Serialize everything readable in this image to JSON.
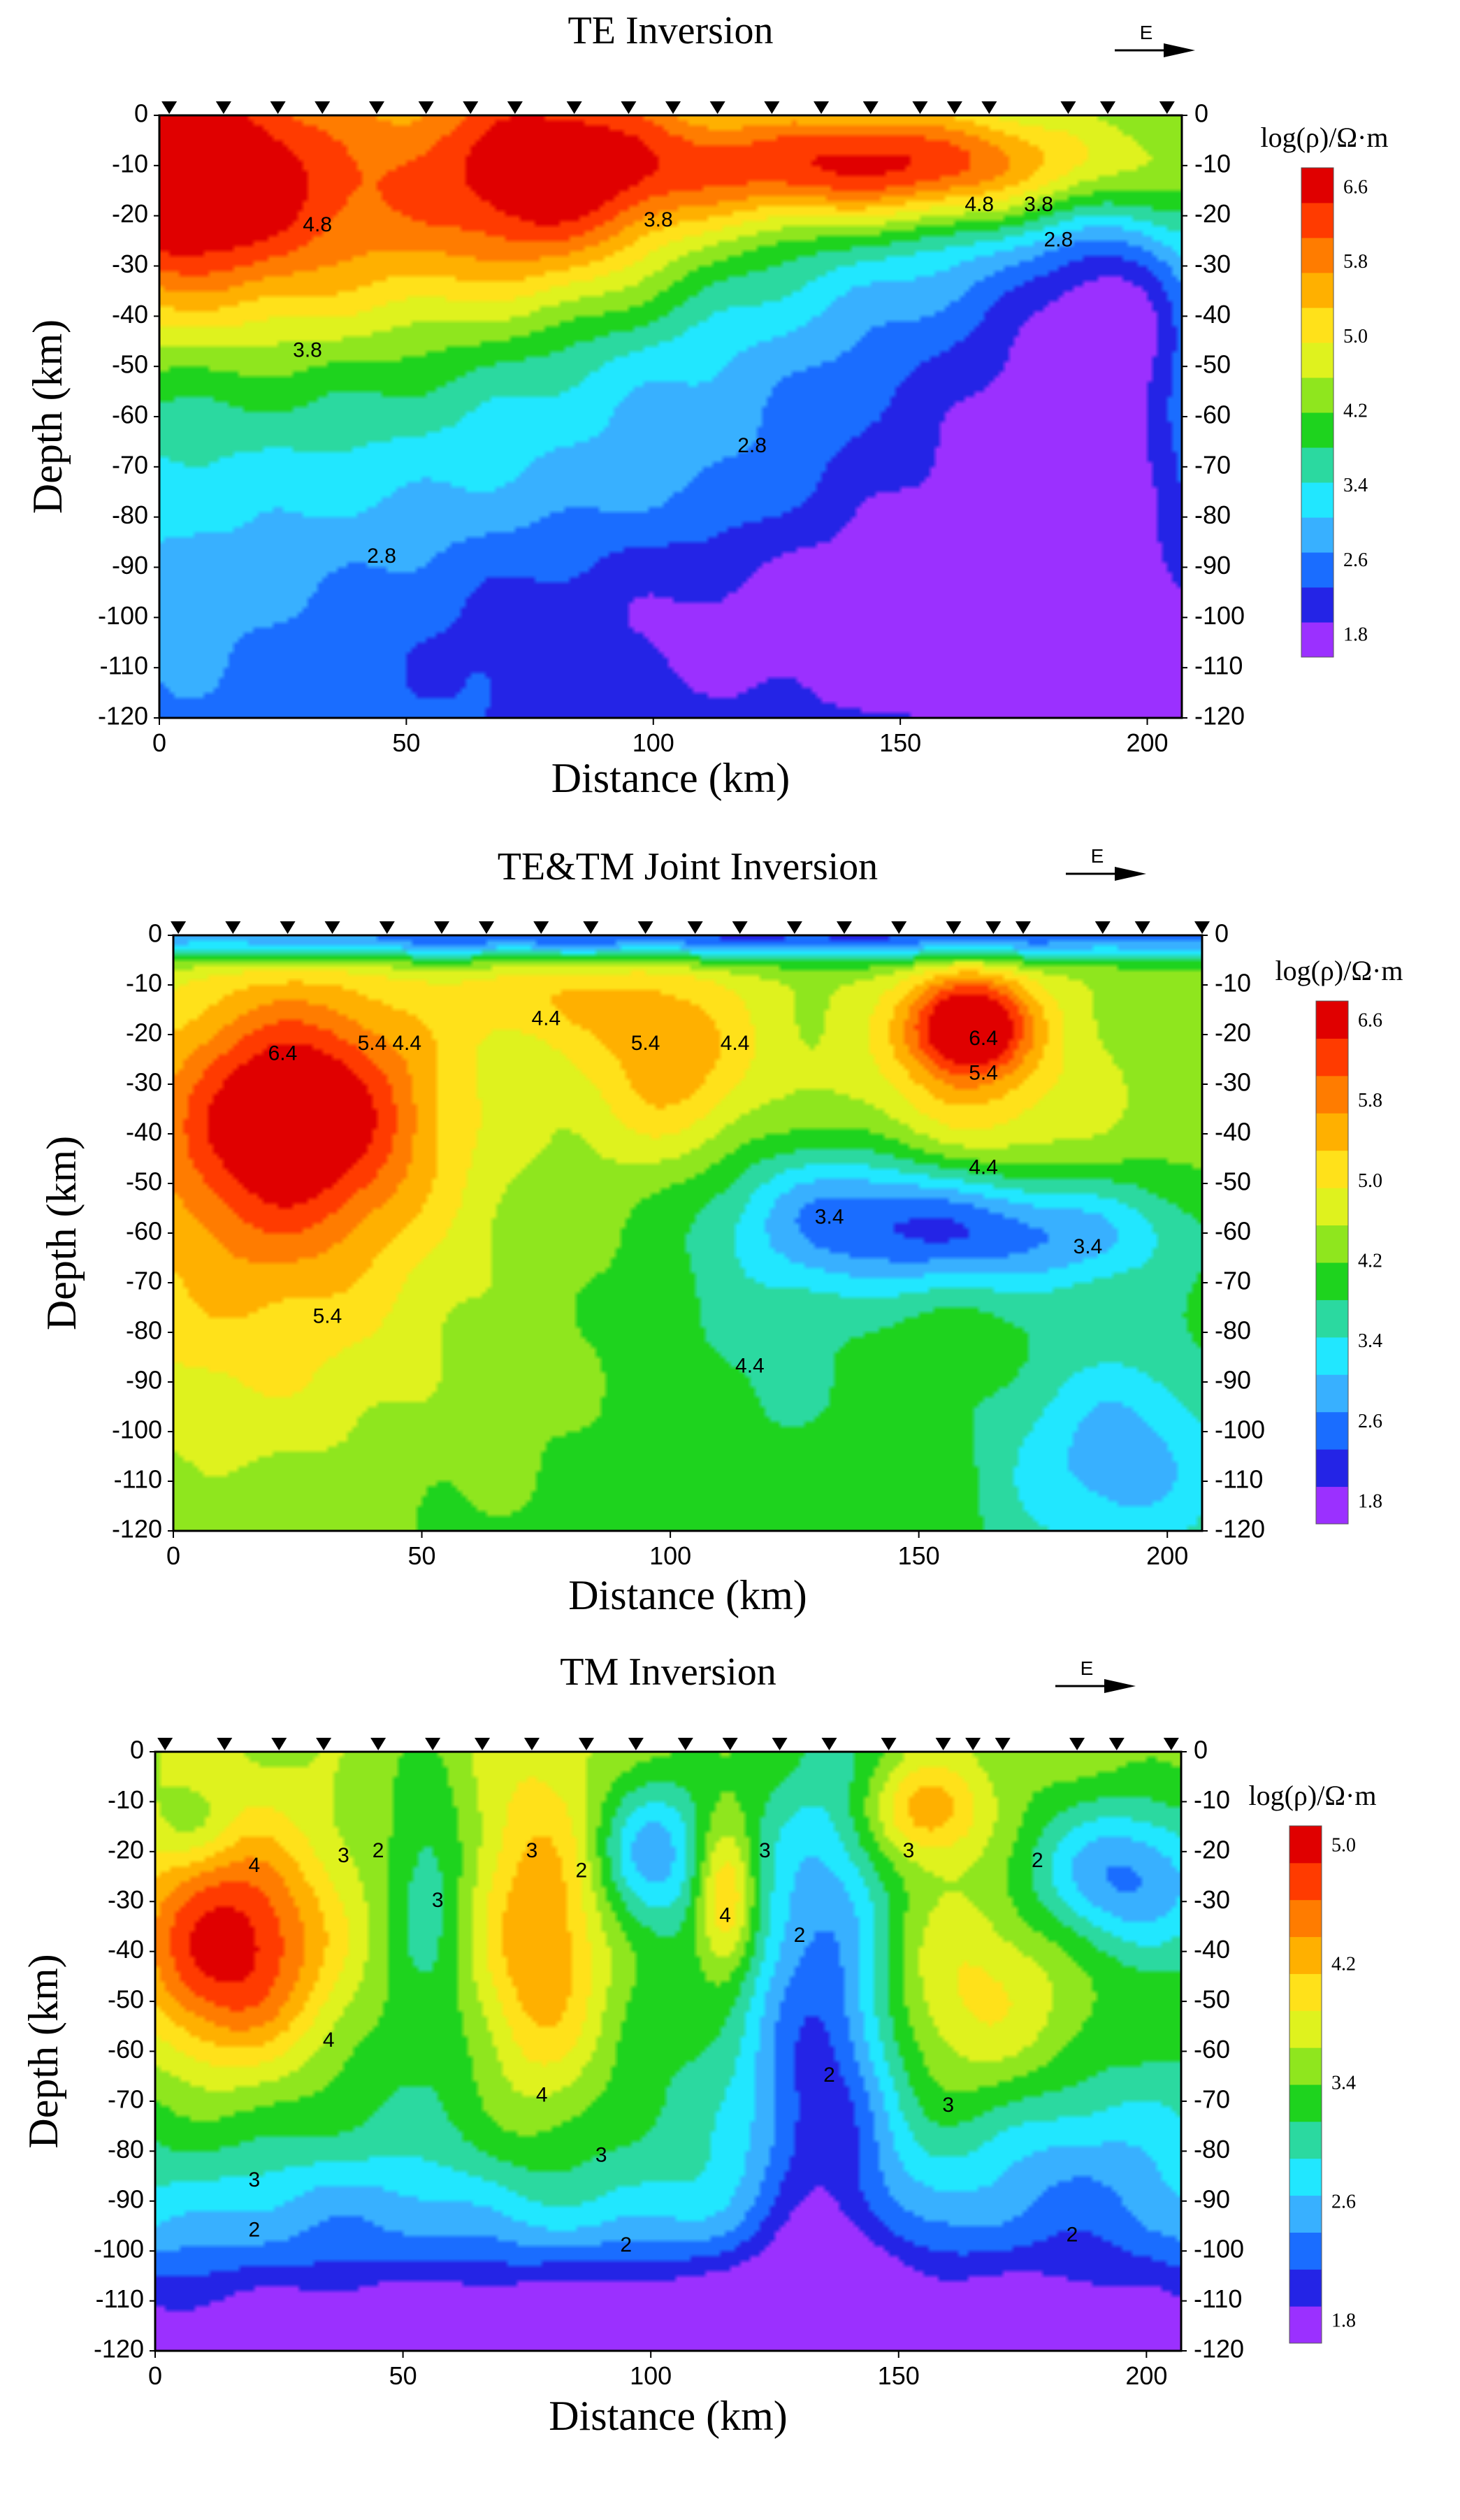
{
  "colors": {
    "scale": [
      "#9b30ff",
      "#2424e6",
      "#1a6dff",
      "#38b0ff",
      "#21e7ff",
      "#2bd9a0",
      "#1ed31e",
      "#8fe61e",
      "#dff21e",
      "#ffe11a",
      "#ffb000",
      "#ff7c00",
      "#ff3b00",
      "#e00000"
    ],
    "station": "#000000"
  },
  "chart_data": [
    {
      "type": "heatmap",
      "title": "TE Inversion",
      "direction_label": "E",
      "xlabel": "Distance (km)",
      "ylabel": "Depth (km)",
      "xlim": [
        0,
        207
      ],
      "ylim": [
        -120,
        0
      ],
      "x_ticks": [
        "0",
        "50",
        "100",
        "150",
        "200"
      ],
      "y_ticks": [
        "0",
        "-10",
        "-20",
        "-30",
        "-40",
        "-50",
        "-60",
        "-70",
        "-80",
        "-90",
        "-100",
        "-110",
        "-120"
      ],
      "colorbar": {
        "label": "log(ρ)/Ω·m",
        "ticks": [
          "6.6",
          "5.8",
          "5.0",
          "4.2",
          "3.4",
          "2.6",
          "1.8"
        ],
        "min": 1.8,
        "max": 6.6
      },
      "stations_km": [
        2,
        13,
        24,
        33,
        44,
        54,
        63,
        72,
        84,
        95,
        104,
        113,
        124,
        134,
        144,
        154,
        161,
        168,
        184,
        192,
        204
      ],
      "contour_labels": [
        {
          "text": "4.8",
          "x": 32,
          "y": -22
        },
        {
          "text": "3.8",
          "x": 101,
          "y": -21
        },
        {
          "text": "4.8",
          "x": 166,
          "y": -18
        },
        {
          "text": "3.8",
          "x": 178,
          "y": -18
        },
        {
          "text": "2.8",
          "x": 182,
          "y": -25
        },
        {
          "text": "3.8",
          "x": 30,
          "y": -47
        },
        {
          "text": "2.8",
          "x": 120,
          "y": -66
        },
        {
          "text": "2.8",
          "x": 45,
          "y": -88
        }
      ],
      "anomalies": [
        {
          "x": 0,
          "y": -10,
          "r": [
            30,
            25
          ],
          "v": 1.8
        },
        {
          "x": 30,
          "y": -20,
          "r": [
            70,
            30
          ],
          "v": 1.6
        },
        {
          "x": 80,
          "y": -10,
          "r": [
            25,
            25
          ],
          "v": 1.5
        },
        {
          "x": 150,
          "y": -10,
          "r": [
            50,
            12
          ],
          "v": 2.5
        },
        {
          "x": 110,
          "y": -100,
          "r": [
            70,
            25
          ],
          "v": -0.9
        },
        {
          "x": 150,
          "y": -60,
          "r": [
            30,
            50
          ],
          "v": -0.8
        },
        {
          "x": 185,
          "y": -70,
          "r": [
            25,
            60
          ],
          "v": -1.5
        },
        {
          "x": 195,
          "y": -40,
          "r": [
            15,
            20
          ],
          "v": -0.9
        },
        {
          "x": 205,
          "y": -115,
          "r": [
            20,
            20
          ],
          "v": -0.8
        },
        {
          "x": 100,
          "y": -50,
          "r": [
            40,
            20
          ],
          "v": -0.5
        }
      ],
      "base": {
        "top": 4.2,
        "bottom": 2.8
      }
    },
    {
      "type": "heatmap",
      "title": "TE&TM Joint Inversion",
      "direction_label": "E",
      "xlabel": "Distance (km)",
      "ylabel": "Depth (km)",
      "xlim": [
        0,
        207
      ],
      "ylim": [
        -120,
        0
      ],
      "x_ticks": [
        "0",
        "50",
        "100",
        "150",
        "200"
      ],
      "y_ticks": [
        "0",
        "-10",
        "-20",
        "-30",
        "-40",
        "-50",
        "-60",
        "-70",
        "-80",
        "-90",
        "-100",
        "-110",
        "-120"
      ],
      "colorbar": {
        "label": "log(ρ)/Ω·m",
        "ticks": [
          "6.6",
          "5.8",
          "5.0",
          "4.2",
          "3.4",
          "2.6",
          "1.8"
        ],
        "min": 1.8,
        "max": 7.2
      },
      "stations_km": [
        1,
        12,
        23,
        32,
        43,
        54,
        63,
        74,
        84,
        95,
        105,
        114,
        125,
        135,
        146,
        157,
        165,
        171,
        187,
        195,
        207
      ],
      "contour_labels": [
        {
          "text": "6.4",
          "x": 22,
          "y": -24
        },
        {
          "text": "5.4",
          "x": 40,
          "y": -22
        },
        {
          "text": "4.4",
          "x": 47,
          "y": -22
        },
        {
          "text": "4.4",
          "x": 75,
          "y": -17
        },
        {
          "text": "5.4",
          "x": 95,
          "y": -22
        },
        {
          "text": "4.4",
          "x": 113,
          "y": -22
        },
        {
          "text": "6.4",
          "x": 163,
          "y": -21
        },
        {
          "text": "5.4",
          "x": 163,
          "y": -28
        },
        {
          "text": "4.4",
          "x": 163,
          "y": -47
        },
        {
          "text": "3.4",
          "x": 132,
          "y": -57
        },
        {
          "text": "3.4",
          "x": 184,
          "y": -63
        },
        {
          "text": "5.4",
          "x": 31,
          "y": -77
        },
        {
          "text": "4.4",
          "x": 116,
          "y": -87
        }
      ],
      "anomalies": [
        {
          "x": 25,
          "y": -35,
          "r": [
            28,
            25
          ],
          "v": 2.4
        },
        {
          "x": 15,
          "y": -70,
          "r": [
            40,
            40
          ],
          "v": 1.0
        },
        {
          "x": 100,
          "y": -25,
          "r": [
            18,
            20
          ],
          "v": 1.2
        },
        {
          "x": 160,
          "y": -18,
          "r": [
            12,
            10
          ],
          "v": 2.6
        },
        {
          "x": 160,
          "y": -35,
          "r": [
            25,
            25
          ],
          "v": 0.9
        },
        {
          "x": 170,
          "y": -60,
          "r": [
            35,
            12
          ],
          "v": -1.6
        },
        {
          "x": 140,
          "y": -55,
          "r": [
            30,
            15
          ],
          "v": -1.4
        },
        {
          "x": 190,
          "y": -105,
          "r": [
            25,
            25
          ],
          "v": -1.3
        },
        {
          "x": 120,
          "y": -80,
          "r": [
            25,
            30
          ],
          "v": -0.5
        },
        {
          "x": 75,
          "y": -12,
          "r": [
            20,
            10
          ],
          "v": 0.7
        },
        {
          "x": 100,
          "y": 0,
          "r": [
            207,
            5
          ],
          "v": -2.4
        }
      ],
      "base": {
        "top": 4.8,
        "bottom": 4.4
      }
    },
    {
      "type": "heatmap",
      "title": "TM Inversion",
      "direction_label": "E",
      "xlabel": "Distance (km)",
      "ylabel": "Depth (km)",
      "xlim": [
        0,
        207
      ],
      "ylim": [
        -120,
        0
      ],
      "x_ticks": [
        "0",
        "50",
        "100",
        "150",
        "200"
      ],
      "y_ticks": [
        "0",
        "-10",
        "-20",
        "-30",
        "-40",
        "-50",
        "-60",
        "-70",
        "-80",
        "-90",
        "-100",
        "-110",
        "-120"
      ],
      "colorbar": {
        "label": "log(ρ)/Ω·m",
        "ticks": [
          "5.0",
          "4.2",
          "3.4",
          "2.6",
          "1.8"
        ],
        "min": 0.6,
        "max": 5.4
      },
      "stations_km": [
        2,
        14,
        25,
        34,
        45,
        56,
        66,
        76,
        87,
        97,
        107,
        116,
        126,
        136,
        148,
        159,
        165,
        171,
        186,
        194,
        205
      ],
      "contour_labels": [
        {
          "text": "4",
          "x": 20,
          "y": -23
        },
        {
          "text": "3",
          "x": 38,
          "y": -21
        },
        {
          "text": "2",
          "x": 45,
          "y": -20
        },
        {
          "text": "3",
          "x": 57,
          "y": -30
        },
        {
          "text": "3",
          "x": 76,
          "y": -20
        },
        {
          "text": "2",
          "x": 86,
          "y": -24
        },
        {
          "text": "3",
          "x": 123,
          "y": -20
        },
        {
          "text": "4",
          "x": 115,
          "y": -33
        },
        {
          "text": "2",
          "x": 130,
          "y": -37
        },
        {
          "text": "3",
          "x": 152,
          "y": -20
        },
        {
          "text": "2",
          "x": 178,
          "y": -22
        },
        {
          "text": "4",
          "x": 35,
          "y": -58
        },
        {
          "text": "4",
          "x": 78,
          "y": -69
        },
        {
          "text": "2",
          "x": 136,
          "y": -65
        },
        {
          "text": "3",
          "x": 160,
          "y": -71
        },
        {
          "text": "3",
          "x": 90,
          "y": -81
        },
        {
          "text": "3",
          "x": 20,
          "y": -86
        },
        {
          "text": "2",
          "x": 20,
          "y": -96
        },
        {
          "text": "2",
          "x": 95,
          "y": -99
        },
        {
          "text": "2",
          "x": 185,
          "y": -97
        }
      ],
      "anomalies": [
        {
          "x": 15,
          "y": -40,
          "r": [
            22,
            25
          ],
          "v": 2.4
        },
        {
          "x": 78,
          "y": -40,
          "r": [
            14,
            35
          ],
          "v": 1.5
        },
        {
          "x": 115,
          "y": -30,
          "r": [
            6,
            15
          ],
          "v": 1.4
        },
        {
          "x": 165,
          "y": -50,
          "r": [
            25,
            25
          ],
          "v": 1.0
        },
        {
          "x": 155,
          "y": -12,
          "r": [
            12,
            10
          ],
          "v": 1.2
        },
        {
          "x": 55,
          "y": -25,
          "r": [
            8,
            25
          ],
          "v": -0.6
        },
        {
          "x": 100,
          "y": -20,
          "r": [
            12,
            15
          ],
          "v": -1.3
        },
        {
          "x": 135,
          "y": -60,
          "r": [
            15,
            60
          ],
          "v": -1.7
        },
        {
          "x": 195,
          "y": -25,
          "r": [
            20,
            15
          ],
          "v": -1.5
        },
        {
          "x": 100,
          "y": -115,
          "r": [
            200,
            18
          ],
          "v": -1.8
        },
        {
          "x": 40,
          "y": -90,
          "r": [
            30,
            10
          ],
          "v": -0.4
        },
        {
          "x": 185,
          "y": -85,
          "r": [
            25,
            20
          ],
          "v": -0.8
        },
        {
          "x": 8,
          "y": -15,
          "r": [
            8,
            8
          ],
          "v": -0.5
        }
      ],
      "base": {
        "top": 3.2,
        "bottom": 2.2
      }
    }
  ]
}
